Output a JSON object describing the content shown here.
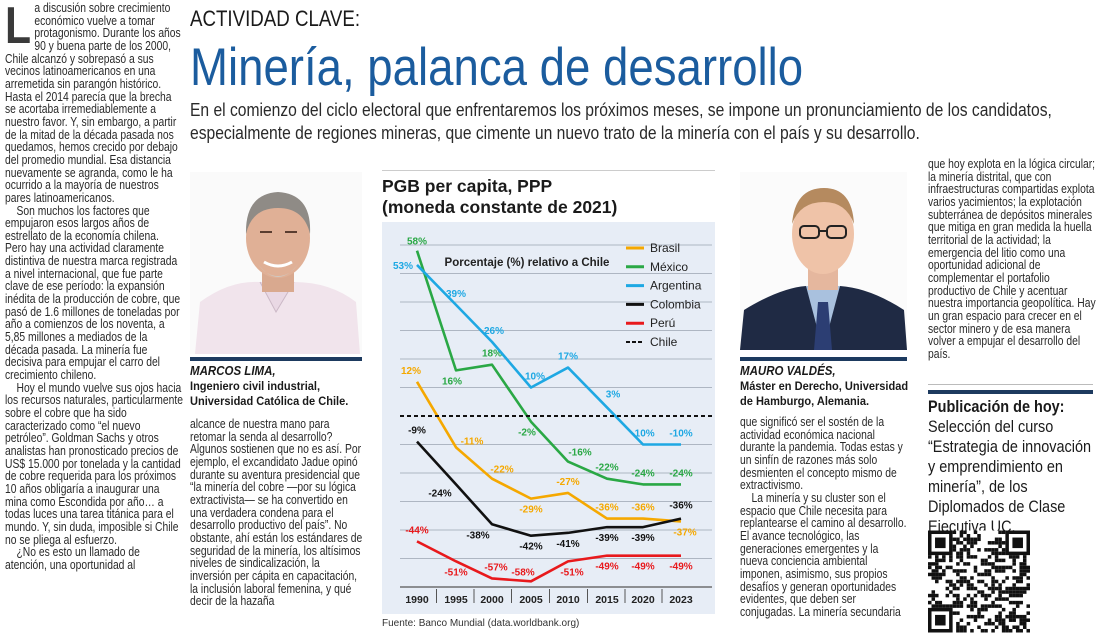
{
  "kicker": "ACTIVIDAD CLAVE:",
  "headline": "Minería, palanca de desarrollo",
  "deck": "En el comienzo del ciclo electoral que enfrentaremos los próximos meses, se impone un pronunciamiento de los candidatos, especialmente de regiones mineras, que cimente un nuevo trato de la minería con el país y su desarrollo.",
  "column1": {
    "dropcap": "L",
    "paragraphs": [
      "a discusión sobre crecimiento económico vuelve a tomar protagonismo. Durante los años 90 y buena parte de los 2000, Chile alcanzó y sobrepasó a sus vecinos latinoamericanos en una arremetida sin parangón histórico. Hasta el 2014 parecía que la brecha se acortaba irremediablemente a nuestro favor. Y, sin embargo, a partir de la mitad de la década pasada nos quedamos, hemos crecido por debajo del promedio mundial. Esa distancia nuevamente se agranda, como le ha ocurrido a la mayoría de nuestros pares latinoamericanos.",
      "Son muchos los factores que empujaron esos largos años de estrellato de la economía chilena. Pero hay una actividad claramente distintiva de nuestra marca registrada a nivel internacional, que fue parte clave de ese período: la expansión inédita de la producción de cobre, que pasó de 1.6 millones de toneladas por año a comienzos de los noventa, a 5,85 millones a mediados de la década pasada. La minería fue decisiva para empujar el carro del crecimiento chileno.",
      "Hoy el mundo vuelve sus ojos hacia los recursos naturales, particularmente sobre el cobre que ha sido caracterizado como “el nuevo petróleo”. Goldman Sachs y otros analistas han pronosticado precios de US$ 15.000 por tonelada y la cantidad de cobre requerida para los próximos 10 años obligaría a inaugurar una mina como Escondida por año… a todas luces una tarea titánica para el mundo. Y, sin duda, imposible si Chile no se pliega al esfuerzo.",
      "¿No es esto un llamado de atención, una oportunidad al"
    ]
  },
  "author1": {
    "name": "MARCOS LIMA,",
    "role1": "Ingeniero civil industrial,",
    "role2": "Universidad Católica de Chile."
  },
  "column2": {
    "paragraphs": [
      "alcance de nuestra mano para retomar la senda al desarrollo? Algunos sostienen que no es así. Por ejemplo, el excandidato Jadue opinó durante su aventura presidencial que “la minería del cobre —por su lógica extractivista— se ha convertido en una verdadera condena para el desarrollo productivo del país”. No obstante, ahí están los estándares de seguridad de la minería, los altísimos niveles de sindicalización, la inversión per cápita en capacitación, la inclusión laboral femenina, y qué decir de la hazaña"
    ]
  },
  "author2": {
    "name": "MAURO VALDÉS,",
    "role1": "Máster en Derecho, Universidad",
    "role2": "de Hamburgo, Alemania."
  },
  "column3": {
    "paragraphs": [
      "que significó ser el sostén de la actividad económica nacional durante la pandemia. Todas estas y un sinfín de razones más solo desmienten el concepto mismo de extractivismo.",
      "La minería y su cluster son el espacio que Chile necesita para replantearse el camino al desarrollo. El avance tecnológico, las generaciones emergentes y la nueva conciencia ambiental imponen, asimismo, sus propios desafíos y generan oportunidades evidentes, que deben ser conjugadas. La minería secundaria"
    ]
  },
  "column4": {
    "paragraphs": [
      "que hoy explota en la lógica circular; la minería distrital, que con infraestructuras compartidas explota varios yacimientos; la explotación subterránea de depósitos minerales que mitiga en gran medida la huella territorial de la actividad; la emergencia del litio como una oportunidad adicional de complementar el portafolio productivo de Chile y acentuar nuestra importancia geopolítica. Hay un gran espacio para crecer en el sector minero y de esa manera volver a empujar el desarrollo del país."
    ]
  },
  "publication": {
    "label": "Publicación de hoy:",
    "text": "Selección del curso “Estrategia de innovación y emprendimiento en minería”, de los Diplomados de Clase Ejecutiva UC."
  },
  "chart_data": {
    "type": "line",
    "title": "PGB per capita, PPP (moneda constante de 2021)",
    "title_line1": "PGB per capita, PPP",
    "title_line2": "(moneda constante de 2021)",
    "subtitle": "Porcentaje (%) relativo a Chile",
    "source": "Fuente: Banco Mundial (data.worldbank.org)",
    "categories": [
      "1990",
      "1995",
      "2000",
      "2005",
      "2010",
      "2015",
      "2020",
      "2023"
    ],
    "ylim": [
      -60,
      60
    ],
    "grid": true,
    "legend_position": "top-right",
    "series": [
      {
        "name": "Brasil",
        "color": "#f5a800",
        "values": [
          12,
          -11,
          -22,
          -29,
          -27,
          -36,
          -36,
          -37
        ]
      },
      {
        "name": "México",
        "color": "#2aa845",
        "values": [
          58,
          16,
          18,
          -2,
          -16,
          -22,
          -24,
          -24
        ]
      },
      {
        "name": "Argentina",
        "color": "#1ea8e3",
        "values": [
          53,
          39,
          26,
          10,
          17,
          3,
          -10,
          -10
        ]
      },
      {
        "name": "Colombia",
        "color": "#111111",
        "values": [
          -9,
          -24,
          -38,
          -42,
          -41,
          -39,
          -39,
          -36
        ]
      },
      {
        "name": "Perú",
        "color": "#e8191c",
        "values": [
          -44,
          -51,
          -57,
          -58,
          -51,
          -49,
          -49,
          -49
        ]
      },
      {
        "name": "Chile",
        "color": "#111111",
        "dashed": true,
        "values": [
          0,
          0,
          0,
          0,
          0,
          0,
          0,
          0
        ]
      }
    ]
  },
  "colors": {
    "headline": "#1b5c9e",
    "rule": "#1d3a5f",
    "panel": "#e7edf6"
  }
}
